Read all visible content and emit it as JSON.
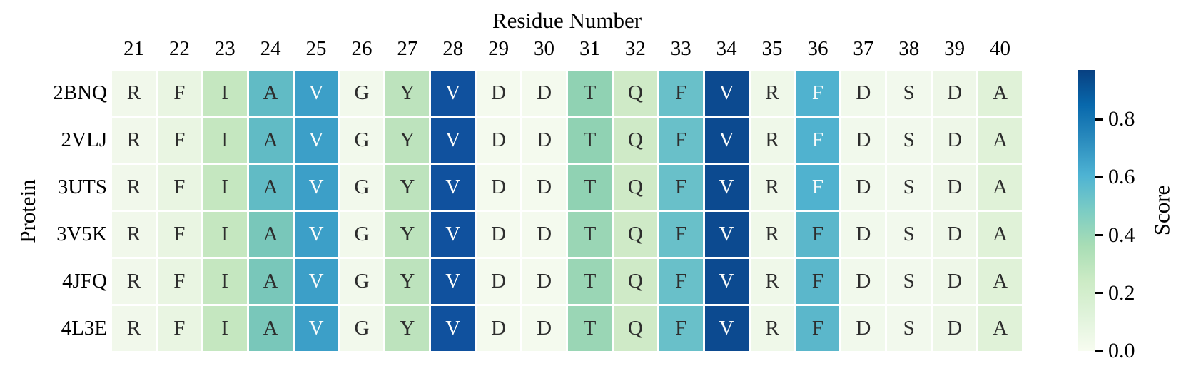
{
  "chart_data": {
    "type": "heatmap",
    "xlabel": "Residue Number",
    "ylabel": "Protein",
    "x": [
      "21",
      "22",
      "23",
      "24",
      "25",
      "26",
      "27",
      "28",
      "29",
      "30",
      "31",
      "32",
      "33",
      "34",
      "35",
      "36",
      "37",
      "38",
      "39",
      "40"
    ],
    "y": [
      "2BNQ",
      "2VLJ",
      "3UTS",
      "3V5K",
      "4JFQ",
      "4L3E"
    ],
    "annotations": [
      [
        "R",
        "F",
        "I",
        "A",
        "V",
        "G",
        "Y",
        "V",
        "D",
        "D",
        "T",
        "Q",
        "F",
        "V",
        "R",
        "F",
        "D",
        "S",
        "D",
        "A"
      ],
      [
        "R",
        "F",
        "I",
        "A",
        "V",
        "G",
        "Y",
        "V",
        "D",
        "D",
        "T",
        "Q",
        "F",
        "V",
        "R",
        "F",
        "D",
        "S",
        "D",
        "A"
      ],
      [
        "R",
        "F",
        "I",
        "A",
        "V",
        "G",
        "Y",
        "V",
        "D",
        "D",
        "T",
        "Q",
        "F",
        "V",
        "R",
        "F",
        "D",
        "S",
        "D",
        "A"
      ],
      [
        "R",
        "F",
        "I",
        "A",
        "V",
        "G",
        "Y",
        "V",
        "D",
        "D",
        "T",
        "Q",
        "F",
        "V",
        "R",
        "F",
        "D",
        "S",
        "D",
        "A"
      ],
      [
        "R",
        "F",
        "I",
        "A",
        "V",
        "G",
        "Y",
        "V",
        "D",
        "D",
        "T",
        "Q",
        "F",
        "V",
        "R",
        "F",
        "D",
        "S",
        "D",
        "A"
      ],
      [
        "R",
        "F",
        "I",
        "A",
        "V",
        "G",
        "Y",
        "V",
        "D",
        "D",
        "T",
        "Q",
        "F",
        "V",
        "R",
        "F",
        "D",
        "S",
        "D",
        "A"
      ]
    ],
    "values": [
      [
        0.06,
        0.1,
        0.27,
        0.55,
        0.67,
        0.05,
        0.3,
        0.9,
        0.04,
        0.04,
        0.43,
        0.24,
        0.52,
        0.94,
        0.07,
        0.62,
        0.05,
        0.05,
        0.08,
        0.15
      ],
      [
        0.06,
        0.1,
        0.27,
        0.55,
        0.67,
        0.05,
        0.3,
        0.9,
        0.04,
        0.04,
        0.43,
        0.24,
        0.52,
        0.94,
        0.07,
        0.62,
        0.05,
        0.05,
        0.08,
        0.15
      ],
      [
        0.06,
        0.1,
        0.27,
        0.55,
        0.67,
        0.05,
        0.3,
        0.9,
        0.04,
        0.04,
        0.43,
        0.24,
        0.52,
        0.94,
        0.07,
        0.62,
        0.05,
        0.05,
        0.08,
        0.15
      ],
      [
        0.06,
        0.1,
        0.27,
        0.48,
        0.67,
        0.05,
        0.3,
        0.9,
        0.04,
        0.04,
        0.4,
        0.24,
        0.52,
        0.94,
        0.07,
        0.58,
        0.05,
        0.05,
        0.08,
        0.15
      ],
      [
        0.06,
        0.1,
        0.27,
        0.48,
        0.67,
        0.05,
        0.3,
        0.9,
        0.04,
        0.04,
        0.4,
        0.24,
        0.52,
        0.94,
        0.07,
        0.58,
        0.05,
        0.05,
        0.08,
        0.15
      ],
      [
        0.06,
        0.1,
        0.27,
        0.48,
        0.67,
        0.05,
        0.3,
        0.9,
        0.04,
        0.04,
        0.4,
        0.24,
        0.52,
        0.94,
        0.07,
        0.58,
        0.05,
        0.05,
        0.08,
        0.15
      ]
    ],
    "cell_colors": [
      [
        "#f1f8eb",
        "#e9f5e2",
        "#c5e7c0",
        "#61bbc5",
        "#3c9fc8",
        "#f2f9ec",
        "#bde3bd",
        "#10519e",
        "#f4faee",
        "#f4faee",
        "#90d2b3",
        "#cfeac7",
        "#69c0c9",
        "#0c4a90",
        "#eff8e9",
        "#50b2cf",
        "#f1f9ec",
        "#f2f9ed",
        "#eef7e8",
        "#e0f2d8"
      ],
      [
        "#f1f8eb",
        "#e9f5e2",
        "#c5e7c0",
        "#61bbc5",
        "#3c9fc8",
        "#f2f9ec",
        "#bde3bd",
        "#10519e",
        "#f4faee",
        "#f4faee",
        "#90d2b3",
        "#cfeac7",
        "#69c0c9",
        "#0c4a90",
        "#eff8e9",
        "#50b2cf",
        "#f1f9ec",
        "#f2f9ed",
        "#eef7e8",
        "#e0f2d8"
      ],
      [
        "#f1f8eb",
        "#e9f5e2",
        "#c5e7c0",
        "#61bbc5",
        "#3c9fc8",
        "#f2f9ec",
        "#bde3bd",
        "#10519e",
        "#f4faee",
        "#f4faee",
        "#90d2b3",
        "#cfeac7",
        "#69c0c9",
        "#0c4a90",
        "#eff8e9",
        "#50b2cf",
        "#f1f9ec",
        "#f2f9ed",
        "#eef7e8",
        "#e0f2d8"
      ],
      [
        "#f1f8eb",
        "#e9f5e2",
        "#c5e7c0",
        "#79c7ba",
        "#3c9fc8",
        "#f2f9ec",
        "#bde3bd",
        "#10519e",
        "#f4faee",
        "#f4faee",
        "#9ad6b5",
        "#cfeac7",
        "#69c0c9",
        "#0c4a90",
        "#eff8e9",
        "#5bb7cb",
        "#f1f9ec",
        "#f2f9ed",
        "#eef7e8",
        "#e0f2d8"
      ],
      [
        "#f1f8eb",
        "#e9f5e2",
        "#c5e7c0",
        "#79c7ba",
        "#3c9fc8",
        "#f2f9ec",
        "#bde3bd",
        "#10519e",
        "#f4faee",
        "#f4faee",
        "#9ad6b5",
        "#cfeac7",
        "#69c0c9",
        "#0c4a90",
        "#eff8e9",
        "#5bb7cb",
        "#f1f9ec",
        "#f2f9ed",
        "#eef7e8",
        "#e0f2d8"
      ],
      [
        "#f1f8eb",
        "#e9f5e2",
        "#c5e7c0",
        "#79c7ba",
        "#3c9fc8",
        "#f2f9ec",
        "#bde3bd",
        "#10519e",
        "#f4faee",
        "#f4faee",
        "#9ad6b5",
        "#cfeac7",
        "#69c0c9",
        "#0c4a90",
        "#eff8e9",
        "#5bb7cb",
        "#f1f9ec",
        "#f2f9ed",
        "#eef7e8",
        "#e0f2d8"
      ]
    ],
    "text_colors": [
      [
        "d",
        "d",
        "d",
        "d",
        "w",
        "d",
        "d",
        "w",
        "d",
        "d",
        "d",
        "d",
        "d",
        "w",
        "d",
        "w",
        "d",
        "d",
        "d",
        "d"
      ],
      [
        "d",
        "d",
        "d",
        "d",
        "w",
        "d",
        "d",
        "w",
        "d",
        "d",
        "d",
        "d",
        "d",
        "w",
        "d",
        "w",
        "d",
        "d",
        "d",
        "d"
      ],
      [
        "d",
        "d",
        "d",
        "d",
        "w",
        "d",
        "d",
        "w",
        "d",
        "d",
        "d",
        "d",
        "d",
        "w",
        "d",
        "w",
        "d",
        "d",
        "d",
        "d"
      ],
      [
        "d",
        "d",
        "d",
        "d",
        "w",
        "d",
        "d",
        "w",
        "d",
        "d",
        "d",
        "d",
        "d",
        "w",
        "d",
        "d",
        "d",
        "d",
        "d",
        "d"
      ],
      [
        "d",
        "d",
        "d",
        "d",
        "w",
        "d",
        "d",
        "w",
        "d",
        "d",
        "d",
        "d",
        "d",
        "w",
        "d",
        "d",
        "d",
        "d",
        "d",
        "d"
      ],
      [
        "d",
        "d",
        "d",
        "d",
        "w",
        "d",
        "d",
        "w",
        "d",
        "d",
        "d",
        "d",
        "d",
        "w",
        "d",
        "d",
        "d",
        "d",
        "d",
        "d"
      ]
    ],
    "colorbar": {
      "label": "Score",
      "ticks": [
        "0.0",
        "0.2",
        "0.4",
        "0.6",
        "0.8"
      ],
      "tick_values": [
        0.0,
        0.2,
        0.4,
        0.6,
        0.8
      ],
      "vmin": 0.0,
      "vmax": 0.97,
      "colormap": "GnBu",
      "gradient_stops": [
        "#f7fcf0",
        "#e0f3db",
        "#ccebc5",
        "#a8ddb5",
        "#7bccc4",
        "#4eb3d3",
        "#2b8cbe",
        "#0868ac",
        "#084081"
      ]
    },
    "legend_position": "right",
    "grid": false
  },
  "colors": {
    "dark_text": "#2d2d2d",
    "light_text": "#fbfdfc",
    "background": "#ffffff"
  }
}
